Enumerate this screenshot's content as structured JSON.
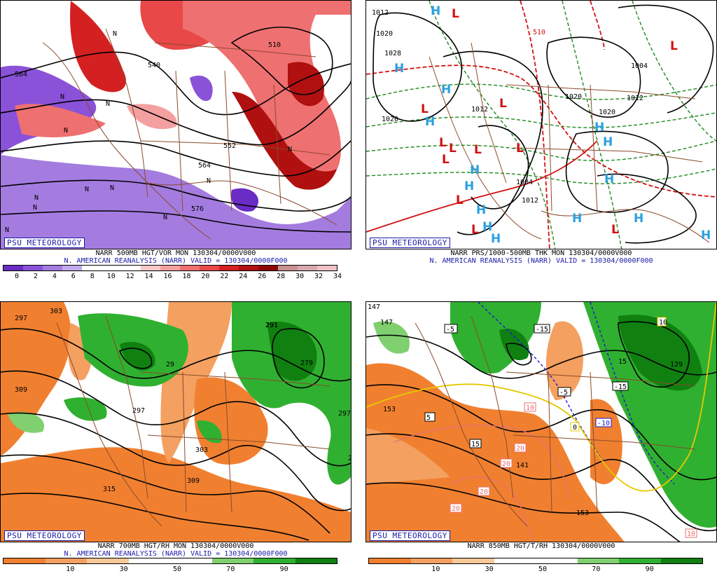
{
  "branding": "PSU METEOROLOGY",
  "panels": {
    "p1": {
      "caption1": "NARR 500MB HGT/VOR MON 130304/0000V000",
      "caption2": "N. AMERICAN REANALYSIS (NARR) VALID = 130304/0000F000",
      "colorbar": {
        "colors": [
          "#6a2cc4",
          "#8a52d8",
          "#a47ce0",
          "#c2a8ec",
          "#ffffff",
          "#ffffff",
          "#ffffff",
          "#f8c8c8",
          "#f4a0a0",
          "#ef7070",
          "#e84848",
          "#d42020",
          "#b01010",
          "#8c0808",
          "#c89090",
          "#d8a8b0",
          "#f0c0c8"
        ],
        "ticks": [
          "0",
          "2",
          "4",
          "6",
          "8",
          "10",
          "12",
          "14",
          "16",
          "18",
          "20",
          "22",
          "24",
          "26",
          "28",
          "30",
          "32",
          "34"
        ]
      },
      "labels": [
        "564",
        "540",
        "510",
        "552",
        "564",
        "576"
      ],
      "markers": [
        "N",
        "N",
        "N",
        "N",
        "N",
        "N",
        "N",
        "N",
        "N",
        "N",
        "N",
        "N"
      ]
    },
    "p2": {
      "caption1": "NARR PRS/1000-500MB THK MON 130304/0000V000",
      "caption2": "N. AMERICAN REANALYSIS (NARR) VALID = 130304/0000F000",
      "labels": [
        "1012",
        "1020",
        "1028",
        "1020",
        "1012",
        "1004",
        "1012",
        "1020",
        "1012",
        "1020",
        "1004"
      ],
      "red_labels": [
        "510"
      ],
      "highs": [
        "H",
        "H",
        "H",
        "H",
        "H",
        "H",
        "H",
        "H",
        "H",
        "H",
        "H",
        "H",
        "H",
        "H",
        "H"
      ],
      "lows": [
        "L",
        "L",
        "L",
        "L",
        "L",
        "L",
        "L",
        "L",
        "L",
        "L",
        "L",
        "L"
      ]
    },
    "p3": {
      "caption1": "NARR 700MB HGT/RH MON 130304/0000V000",
      "caption2": "N. AMERICAN REANALYSIS (NARR) VALID = 130304/0000F000",
      "colorbar": {
        "colors": [
          "#f08030",
          "#f4a060",
          "#f8c898",
          "#ffffff",
          "#ffffff",
          "#80d070",
          "#30b030",
          "#108010"
        ],
        "ticks": [
          "10",
          "30",
          "50",
          "70",
          "90"
        ]
      },
      "labels": [
        "297",
        "303",
        "309",
        "291",
        "297",
        "297",
        "303",
        "309",
        "315",
        "279",
        "297",
        "29",
        "291"
      ]
    },
    "p4": {
      "caption1": "NARR 850MB HGT/T/RH 130304/0000V000",
      "colorbar": {
        "colors": [
          "#f08030",
          "#f4a060",
          "#f8c898",
          "#ffffff",
          "#ffffff",
          "#80d070",
          "#30b030",
          "#108010"
        ],
        "ticks": [
          "10",
          "30",
          "50",
          "70",
          "90"
        ]
      },
      "labels": [
        "147",
        "147",
        "153",
        "141",
        "153",
        "129",
        "15"
      ],
      "temp_boxes": [
        "-5",
        "-15",
        "-5",
        "5",
        "-15",
        "-10",
        "15",
        "10",
        "20",
        "20",
        "20",
        "20",
        "10",
        "0",
        "10"
      ]
    }
  }
}
